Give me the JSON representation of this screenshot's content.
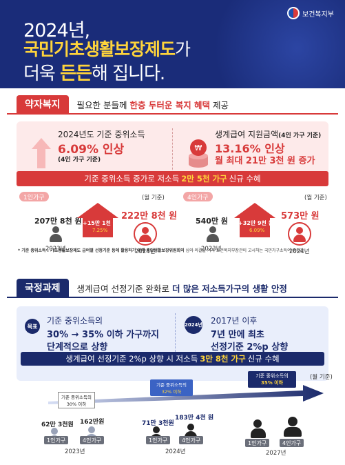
{
  "header": {
    "ministry": "보건복지부",
    "line1": "2024년,",
    "line2_hl": "국민기초생활보장제도",
    "line2_rest": "가",
    "line3_a": "더욱",
    "line3_hl": "든든",
    "line3_b": "해 집니다."
  },
  "sec1": {
    "tab": "약자복지",
    "desc_a": "필요한 분들께",
    "desc_hl": "한층 두터운 복지 혜택",
    "desc_b": "제공",
    "left_title": "2024년도 기준 중위소득",
    "left_value": "6.09% 인상",
    "left_sub": "(4인 가구 기준)",
    "right_title": "생계급여 지원금액",
    "right_title_sub": "(4인 가구 기준)",
    "right_value": "13.16% 인상",
    "right_value2": "월 최대 21만 3천 원 증가",
    "bar_a": "기준 중위소득 증가로 저소득",
    "bar_hl": "2만 5천 가구",
    "bar_b": "신규 수혜",
    "unit": "(월 기준)",
    "g1": {
      "label": "1인가구",
      "before": "207만 8천 원",
      "after": "222만 8천 원",
      "diff": "+15만 1천 원",
      "pct": "7.25%",
      "y0": "2023년",
      "y1": "2024년"
    },
    "g4": {
      "label": "4인가구",
      "before": "540만 원",
      "after": "573만 원",
      "diff": "+32만 9천 원",
      "pct": "6.09%",
      "y0": "2023년",
      "y1": "2024년"
    },
    "note_a": "* 기준 중위소득 : 기초생활보장제도 급여별 선정기준 등에 활용하기 위해",
    "note_hl": "중앙생활보장위원회의",
    "note_b": "심의·의결을 거쳐 보건복지부장관이 고시하는 국민가구소득의 중위값"
  },
  "sec2": {
    "tab": "국정과제",
    "desc_a": "생계급여 선정기준 완화로",
    "desc_hl": "더 많은 저소득가구의 생활 안정",
    "badge1": "목표",
    "b1_line1": "기준 중위소득의",
    "b1_line2": "30% → 35% 이하 가구까지",
    "b1_line3": "단계적으로 상향",
    "badge2": "2024년",
    "b2_line1": "2017년 이후",
    "b2_line2": "7년 만에 최초",
    "b2_line3": "선정기준 2%p 상향",
    "bar_a": "생계급여 선정기준 2%p 상향 시 저소득",
    "bar_hl": "3만 8천 가구",
    "bar_b": "신규 수혜",
    "unit": "(월 기준)",
    "tl": {
      "c2023": "기준 중위소득의",
      "c2023b": "30% 이하",
      "c2024": "기준 중위소득의",
      "c2024b": "32% 이하",
      "c2027": "기준 중위소득의",
      "c2027b": "35% 이하",
      "v23a": "62만 3천원",
      "v23b": "162만원",
      "v24a": "71만 3천원",
      "v24b": "183만 4천 원",
      "tag1": "1인가구",
      "tag4": "4인가구",
      "y23": "2023년",
      "y24": "2024년",
      "y27": "2027년"
    }
  }
}
